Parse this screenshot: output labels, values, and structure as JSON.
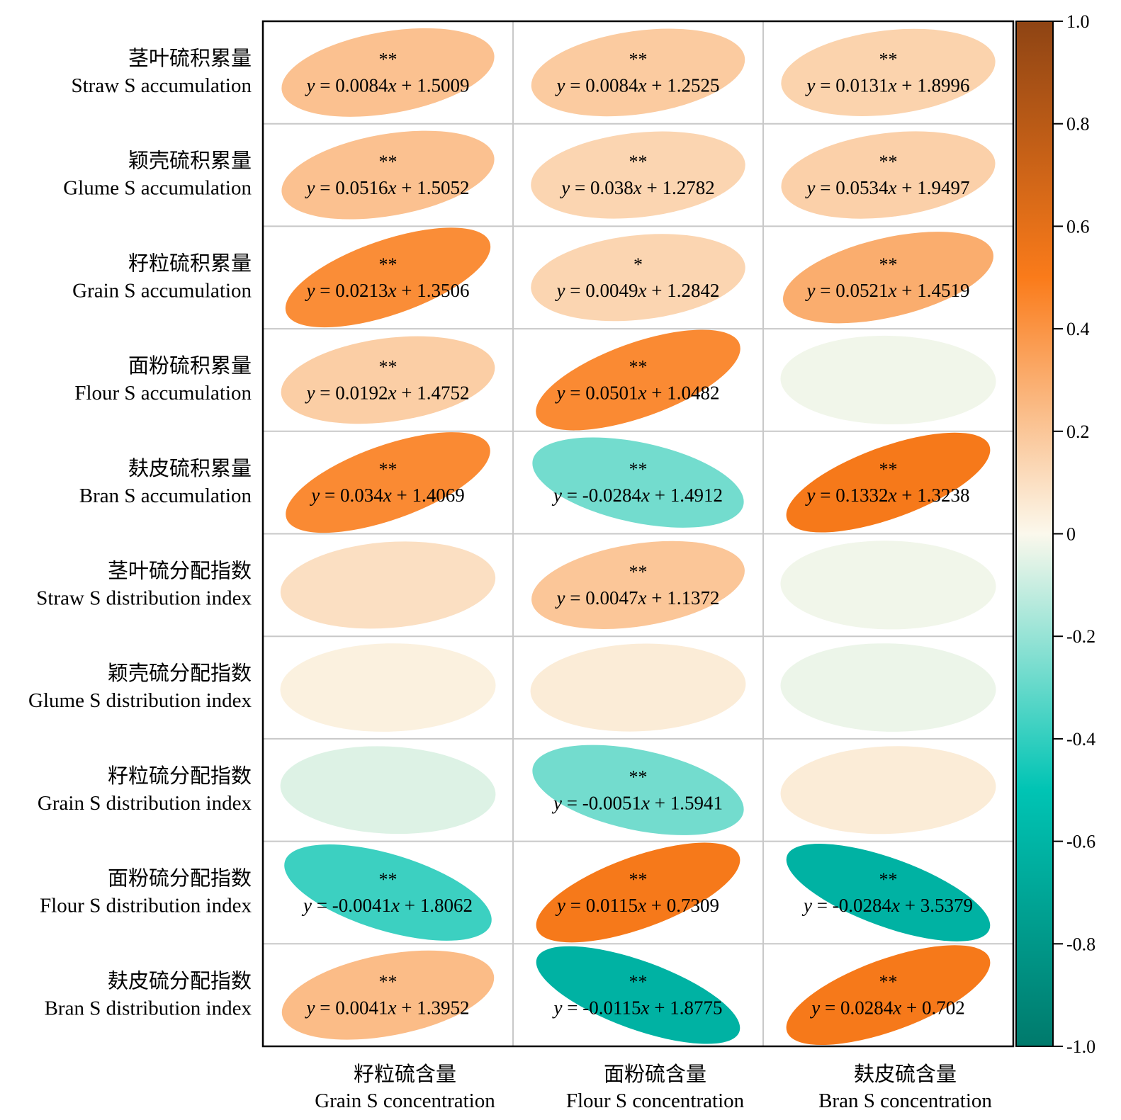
{
  "chart_data": {
    "type": "heatmap",
    "rows": [
      {
        "zh": "茎叶硫积累量",
        "en": "Straw S accumulation"
      },
      {
        "zh": "颖壳硫积累量",
        "en": "Glume S accumulation"
      },
      {
        "zh": "籽粒硫积累量",
        "en": "Grain S accumulation"
      },
      {
        "zh": "面粉硫积累量",
        "en": "Flour S accumulation"
      },
      {
        "zh": "麸皮硫积累量",
        "en": "Bran S accumulation"
      },
      {
        "zh": "茎叶硫分配指数",
        "en": "Straw S distribution index"
      },
      {
        "zh": "颖壳硫分配指数",
        "en": "Glume S distribution index"
      },
      {
        "zh": "籽粒硫分配指数",
        "en": "Grain S distribution index"
      },
      {
        "zh": "面粉硫分配指数",
        "en": "Flour S distribution index"
      },
      {
        "zh": "麸皮硫分配指数",
        "en": "Bran S distribution index"
      }
    ],
    "columns": [
      {
        "zh": "籽粒硫含量",
        "en": "Grain S concentration"
      },
      {
        "zh": "面粉硫含量",
        "en": "Flour S concentration"
      },
      {
        "zh": "麸皮硫含量",
        "en": "Bran S concentration"
      }
    ],
    "correlation": [
      [
        0.22,
        0.18,
        0.15
      ],
      [
        0.22,
        0.14,
        0.16
      ],
      [
        0.43,
        0.14,
        0.3
      ],
      [
        0.17,
        0.44,
        -0.02
      ],
      [
        0.44,
        -0.27,
        0.52
      ],
      [
        0.1,
        0.2,
        -0.02
      ],
      [
        0.03,
        0.05,
        -0.03
      ],
      [
        -0.06,
        -0.27,
        0.05
      ],
      [
        -0.38,
        0.52,
        -0.62
      ],
      [
        0.24,
        -0.62,
        0.52
      ]
    ],
    "significance": [
      [
        "**",
        "**",
        "**"
      ],
      [
        "**",
        "**",
        "**"
      ],
      [
        "**",
        "*",
        "**"
      ],
      [
        "**",
        "**",
        ""
      ],
      [
        "**",
        "**",
        "**"
      ],
      [
        "",
        "**",
        ""
      ],
      [
        "",
        "",
        ""
      ],
      [
        "",
        "**",
        ""
      ],
      [
        "**",
        "**",
        "**"
      ],
      [
        "**",
        "**",
        "**"
      ]
    ],
    "equations": [
      [
        {
          "s": "0.0084",
          "c": "1.5009"
        },
        {
          "s": "0.0084",
          "c": "1.2525"
        },
        {
          "s": "0.0131",
          "c": "1.8996"
        }
      ],
      [
        {
          "s": "0.0516",
          "c": "1.5052"
        },
        {
          "s": "0.038",
          "c": "1.2782"
        },
        {
          "s": "0.0534",
          "c": "1.9497"
        }
      ],
      [
        {
          "s": "0.0213",
          "c": "1.3506"
        },
        {
          "s": "0.0049",
          "c": "1.2842"
        },
        {
          "s": "0.0521",
          "c": "1.4519"
        }
      ],
      [
        {
          "s": "0.0192",
          "c": "1.4752"
        },
        {
          "s": "0.0501",
          "c": "1.0482"
        },
        null
      ],
      [
        {
          "s": "0.034",
          "c": "1.4069"
        },
        {
          "s": "-0.0284",
          "c": "1.4912"
        },
        {
          "s": "0.1332",
          "c": "1.3238"
        }
      ],
      [
        null,
        {
          "s": "0.0047",
          "c": "1.1372"
        },
        null
      ],
      [
        null,
        null,
        null
      ],
      [
        null,
        {
          "s": "-0.0051",
          "c": "1.5941"
        },
        null
      ],
      [
        {
          "s": "-0.0041",
          "c": "1.8062"
        },
        {
          "s": "0.0115",
          "c": "0.7309"
        },
        {
          "s": "-0.0284",
          "c": "3.5379"
        }
      ],
      [
        {
          "s": "0.0041",
          "c": "1.3952"
        },
        {
          "s": "-0.0115",
          "c": "1.8775"
        },
        {
          "s": "0.0284",
          "c": "0.702"
        }
      ]
    ],
    "colorbar": {
      "ticks": [
        "1.0",
        "0.8",
        "0.6",
        "0.4",
        "0.2",
        "0",
        "-0.2",
        "-0.4",
        "-0.6",
        "-0.8",
        "-1.0"
      ],
      "range": [
        -1,
        1
      ],
      "stops": [
        {
          "v": -1.0,
          "color": "#007a6c"
        },
        {
          "v": -0.5,
          "color": "#00c4b4"
        },
        {
          "v": 0.0,
          "color": "#fbf8ec"
        },
        {
          "v": 0.5,
          "color": "#fa7b1a"
        },
        {
          "v": 1.0,
          "color": "#8e4414"
        }
      ]
    }
  }
}
